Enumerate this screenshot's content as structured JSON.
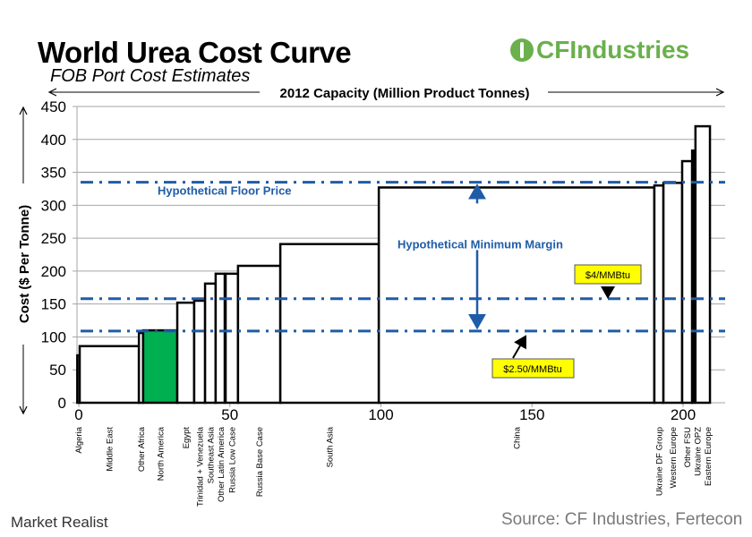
{
  "header": {
    "title": "World Urea Cost Curve",
    "subtitle": "FOB Port Cost Estimates",
    "logo_text": "CFIndustries"
  },
  "footer": {
    "source": "Source: CF Industries, Fertecon",
    "watermark": "Market Realist"
  },
  "chart_data": {
    "type": "bar",
    "subtype": "variable-width cost curve",
    "xlabel": "2012 Capacity (Million Product Tonnes)",
    "ylabel": "Cost ($ Per Tonne)",
    "xlim": [
      -0.5,
      214
    ],
    "ylim": [
      0,
      450
    ],
    "xticks": [
      0,
      50,
      100,
      150,
      200
    ],
    "yticks": [
      0,
      50,
      100,
      150,
      200,
      250,
      300,
      350,
      400,
      450
    ],
    "grid": true,
    "colors": {
      "bar_fill": "#ffffff",
      "highlight_fill": "#00b050",
      "bar_stroke": "#000000",
      "reference_line": "#1f5ca8",
      "callout_fill": "#ffff00"
    },
    "segments": [
      {
        "name": "Algeria",
        "x0": -0.5,
        "x1": 0.3,
        "cost": 72
      },
      {
        "name": "Middle East",
        "x0": 0.3,
        "x1": 19.9,
        "cost": 86
      },
      {
        "name": "Other Africa",
        "x0": 19.9,
        "x1": 21.3,
        "cost": 106
      },
      {
        "name": "North America",
        "x0": 21.3,
        "x1": 32.6,
        "cost": 110,
        "highlight": true
      },
      {
        "name": "Egypt",
        "x0": 32.6,
        "x1": 38.2,
        "cost": 152
      },
      {
        "name": "Trinidad + Venezuela",
        "x0": 38.2,
        "x1": 41.8,
        "cost": 155
      },
      {
        "name": "Southeast Asia",
        "x0": 41.8,
        "x1": 45.3,
        "cost": 181
      },
      {
        "name": "Other Latin America",
        "x0": 45.3,
        "x1": 48.3,
        "cost": 196
      },
      {
        "name": "Russia Low Case",
        "x0": 48.6,
        "x1": 52.7,
        "cost": 196
      },
      {
        "name": "Russia Base Case",
        "x0": 52.7,
        "x1": 66.7,
        "cost": 208
      },
      {
        "name": "South Asia",
        "x0": 66.7,
        "x1": 99.3,
        "cost": 241
      },
      {
        "name": "China",
        "x0": 99.3,
        "x1": 190.5,
        "cost": 327
      },
      {
        "name": "Ukraine DF Group",
        "x0": 190.5,
        "x1": 193.5,
        "cost": 330
      },
      {
        "name": "Western Europe",
        "x0": 193.5,
        "x1": 199.7,
        "cost": 334
      },
      {
        "name": "Other FSU",
        "x0": 199.7,
        "x1": 203.0,
        "cost": 367
      },
      {
        "name": "Ukraine OPZ",
        "x0": 203.0,
        "x1": 203.6,
        "cost": 383
      },
      {
        "name": "Eastern Europe",
        "x0": 204.1,
        "x1": 208.9,
        "cost": 420
      }
    ],
    "reference_lines": [
      {
        "label": "Hypothetical Floor Price",
        "y": 335
      },
      {
        "label": "$4/MMBtu",
        "y": 158
      },
      {
        "label": "$2.50/MMBtu",
        "y": 109
      }
    ],
    "annotations": {
      "margin": "Hypothetical Minimum Margin"
    }
  }
}
